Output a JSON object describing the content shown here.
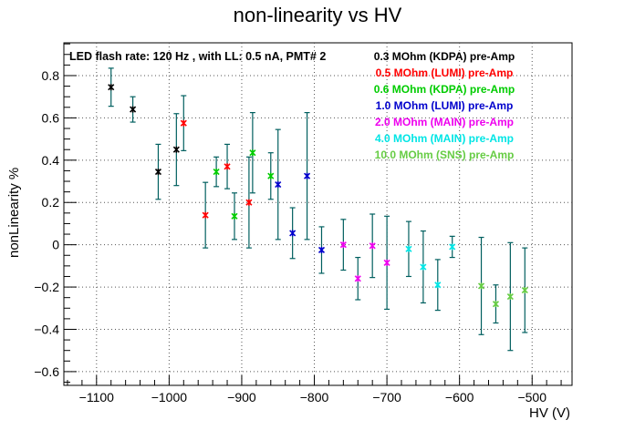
{
  "chart_data": {
    "type": "scatter",
    "title": "non-linearity vs HV",
    "xlabel": "HV (V)",
    "ylabel": "nonLinearity %",
    "xlim": [
      -1145,
      -445
    ],
    "ylim": [
      -0.665,
      0.955
    ],
    "xticks": [
      -1100,
      -1000,
      -900,
      -800,
      -700,
      -600,
      -500
    ],
    "xtick_labels": [
      "−1100",
      "−1000",
      "−900",
      "−800",
      "−700",
      "−600",
      "−500"
    ],
    "yticks": [
      0.8,
      0.6,
      0.4,
      0.2,
      0,
      -0.2,
      -0.4,
      -0.6
    ],
    "ytick_labels": [
      "0.8",
      "0.6",
      "0.4",
      "0.2",
      "0",
      "−0.2",
      "−0.4",
      "−0.6"
    ],
    "grid": true,
    "annotation": "LED flash rate: 120 Hz , with LL: 0.5 nA, PMT# 2",
    "legend_position": "top-right",
    "errorbar_color": "#005f5f",
    "series": [
      {
        "name": "0.3 MOhm (KDPA) pre-Amp",
        "color": "#000000",
        "points": [
          {
            "x": -1080,
            "y": 0.745,
            "err": 0.09
          },
          {
            "x": -1050,
            "y": 0.64,
            "err": 0.06
          },
          {
            "x": -1015,
            "y": 0.345,
            "err": 0.13
          },
          {
            "x": -990,
            "y": 0.45,
            "err": 0.17
          }
        ]
      },
      {
        "name": "0.5 MOhm (LUMI) pre-Amp",
        "color": "#ff0000",
        "points": [
          {
            "x": -980,
            "y": 0.575,
            "err": 0.13
          },
          {
            "x": -950,
            "y": 0.14,
            "err": 0.155
          },
          {
            "x": -920,
            "y": 0.37,
            "err": 0.105
          },
          {
            "x": -890,
            "y": 0.2,
            "err": 0.215
          }
        ]
      },
      {
        "name": "0.6 MOhm (KDPA) pre-Amp",
        "color": "#00cc00",
        "points": [
          {
            "x": -935,
            "y": 0.345,
            "err": 0.07
          },
          {
            "x": -910,
            "y": 0.135,
            "err": 0.11
          },
          {
            "x": -885,
            "y": 0.435,
            "err": 0.19
          },
          {
            "x": -860,
            "y": 0.325,
            "err": 0.11
          }
        ]
      },
      {
        "name": "1.0 MOhm (LUMI) pre-Amp",
        "color": "#0000cc",
        "points": [
          {
            "x": -850,
            "y": 0.285,
            "err": 0.26
          },
          {
            "x": -830,
            "y": 0.055,
            "err": 0.12
          },
          {
            "x": -810,
            "y": 0.325,
            "err": 0.3
          },
          {
            "x": -790,
            "y": -0.025,
            "err": 0.11
          }
        ]
      },
      {
        "name": "2.0 MOhm (MAIN) pre-Amp",
        "color": "#ee00ee",
        "points": [
          {
            "x": -760,
            "y": 0.0,
            "err": 0.12
          },
          {
            "x": -740,
            "y": -0.16,
            "err": 0.1
          },
          {
            "x": -720,
            "y": -0.005,
            "err": 0.15
          },
          {
            "x": -700,
            "y": -0.085,
            "err": 0.22
          }
        ]
      },
      {
        "name": "4.0 MOhm (MAIN) pre-Amp",
        "color": "#00e5e5",
        "points": [
          {
            "x": -670,
            "y": -0.02,
            "err": 0.13
          },
          {
            "x": -650,
            "y": -0.105,
            "err": 0.17
          },
          {
            "x": -630,
            "y": -0.19,
            "err": 0.12
          },
          {
            "x": -610,
            "y": -0.01,
            "err": 0.05
          }
        ]
      },
      {
        "name": "10.0 MOhm (SNS) pre-Amp",
        "color": "#66cc44",
        "points": [
          {
            "x": -570,
            "y": -0.195,
            "err": 0.23
          },
          {
            "x": -550,
            "y": -0.28,
            "err": 0.09
          },
          {
            "x": -530,
            "y": -0.245,
            "err": 0.255
          },
          {
            "x": -510,
            "y": -0.215,
            "err": 0.2
          }
        ]
      }
    ]
  }
}
